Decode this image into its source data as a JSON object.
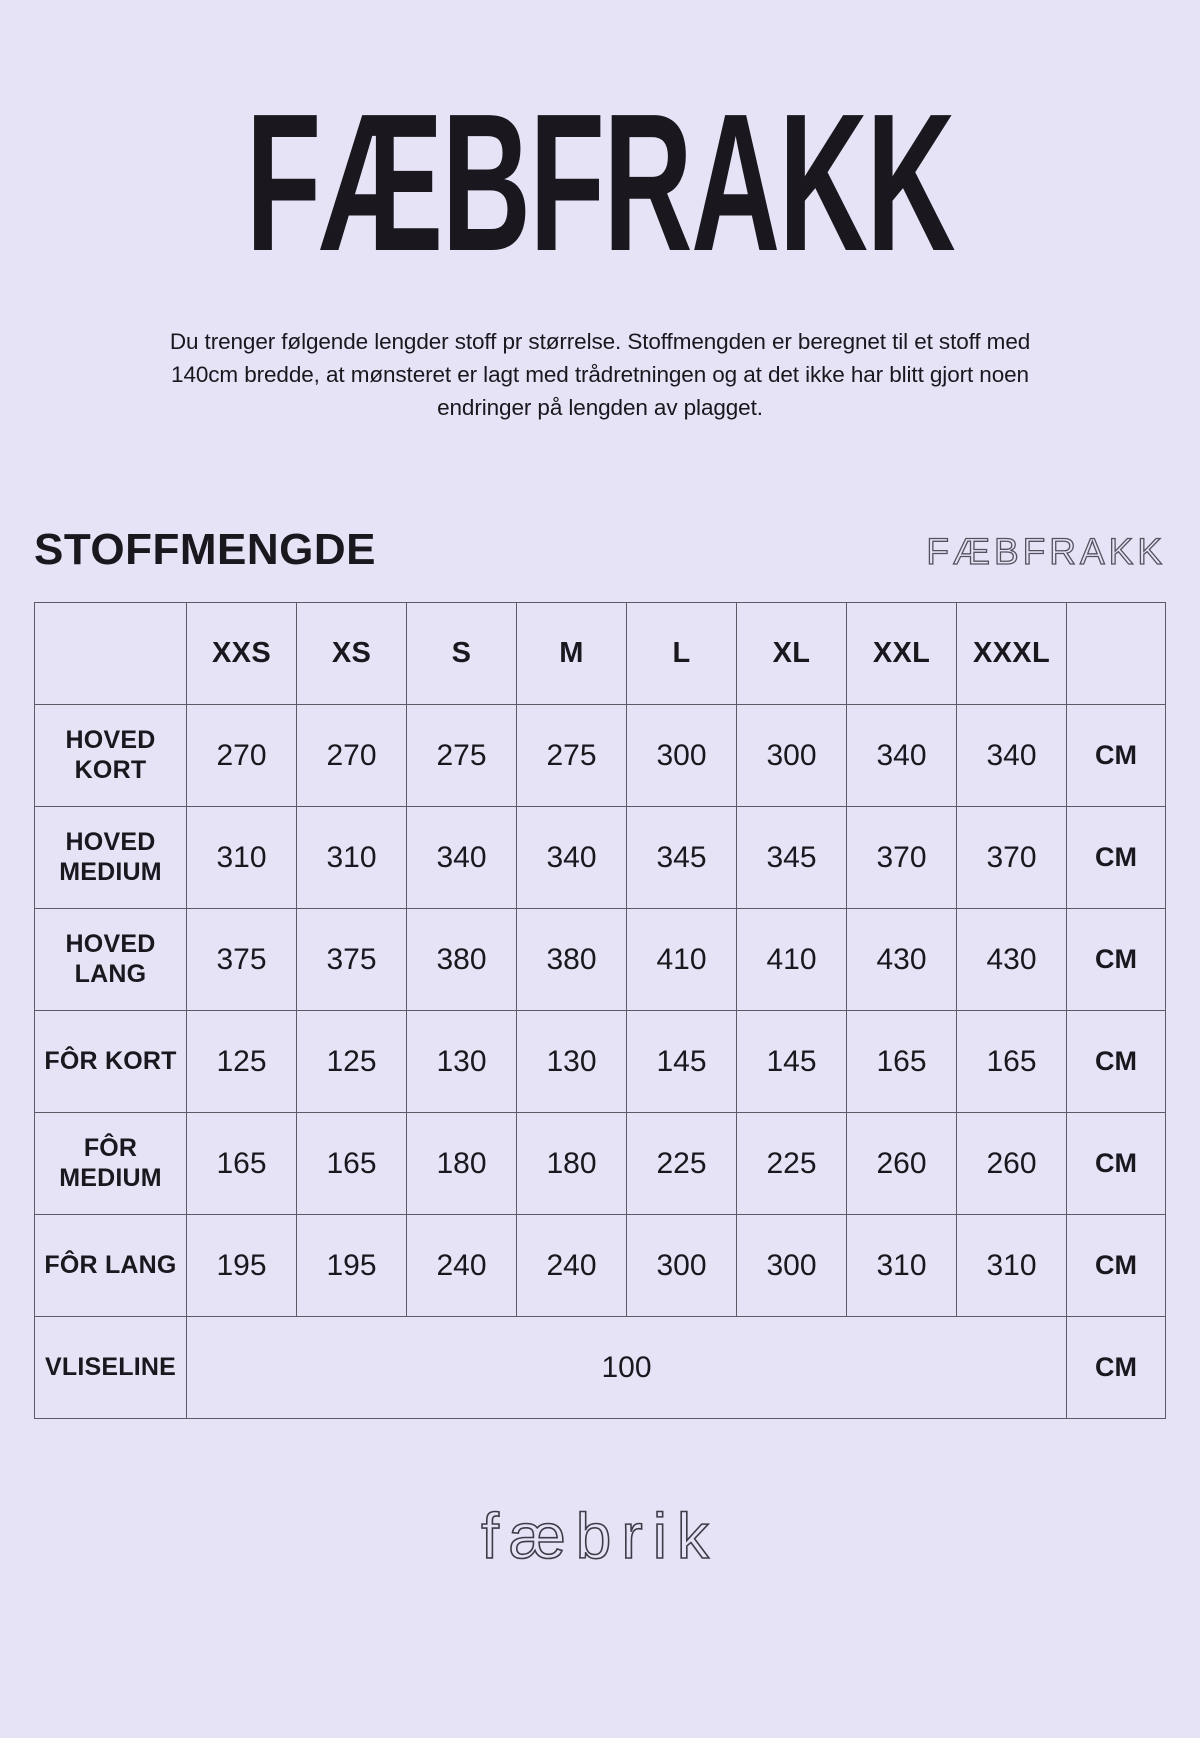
{
  "theme": {
    "background_color": "#E6E3F6",
    "ink_color": "#1A181E",
    "table_border_color": "#5E5B66"
  },
  "header": {
    "title": "FÆBFRAKK"
  },
  "intro": {
    "text": "Du trenger følgende lengder stoff pr størrelse. Stoffmengden er beregnet til et stoff med 140cm bredde, at mønsteret er lagt med trådretningen og at det ikke har blitt gjort noen endringer på lengden av plagget."
  },
  "section": {
    "heading": "STOFFMENGDE",
    "watermark": "FÆBFRAKK"
  },
  "table": {
    "size_headers": [
      "XXS",
      "XS",
      "S",
      "M",
      "L",
      "XL",
      "XXL",
      "XXXL"
    ],
    "rows": [
      {
        "label": "HOVED KORT",
        "values": [
          "270",
          "270",
          "275",
          "275",
          "300",
          "300",
          "340",
          "340"
        ],
        "unit": "CM"
      },
      {
        "label": "HOVED MEDIUM",
        "values": [
          "310",
          "310",
          "340",
          "340",
          "345",
          "345",
          "370",
          "370"
        ],
        "unit": "CM"
      },
      {
        "label": "HOVED LANG",
        "values": [
          "375",
          "375",
          "380",
          "380",
          "410",
          "410",
          "430",
          "430"
        ],
        "unit": "CM"
      },
      {
        "label": "FÔR KORT",
        "values": [
          "125",
          "125",
          "130",
          "130",
          "145",
          "145",
          "165",
          "165"
        ],
        "unit": "CM"
      },
      {
        "label": "FÔR MEDIUM",
        "values": [
          "165",
          "165",
          "180",
          "180",
          "225",
          "225",
          "260",
          "260"
        ],
        "unit": "CM"
      },
      {
        "label": "FÔR LANG",
        "values": [
          "195",
          "195",
          "240",
          "240",
          "300",
          "300",
          "310",
          "310"
        ],
        "unit": "CM"
      },
      {
        "label": "VLISELINE",
        "merged_value": "100",
        "unit": "CM"
      }
    ]
  },
  "footer": {
    "logo": "fæbrik"
  }
}
